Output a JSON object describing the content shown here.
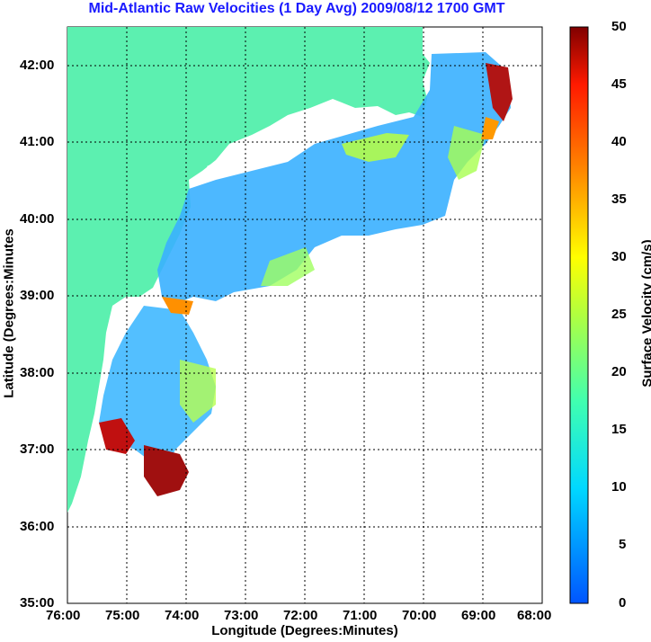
{
  "title": "Mid-Atlantic Raw Velocities (1 Day Avg) 2009/08/12 1700 GMT",
  "xlabel": "Longitude (Degrees:Minutes)",
  "ylabel": "Latitude (Degrees:Minutes",
  "colorbar_label": "Surface Velocity (cm/s)",
  "x_ticks": [
    "76:00",
    "75:00",
    "74:00",
    "73:00",
    "72:00",
    "71:00",
    "70:00",
    "69:00",
    "68:00"
  ],
  "y_ticks": [
    "42:00",
    "41:00",
    "40:00",
    "39:00",
    "38:00",
    "37:00",
    "36:00",
    "35:00"
  ],
  "colorbar_ticks": [
    "50",
    "45",
    "40",
    "35",
    "30",
    "25",
    "20",
    "15",
    "10",
    "5",
    "0"
  ],
  "colors": {
    "land": "#5cf0b0",
    "title": "#1a1aff"
  }
}
